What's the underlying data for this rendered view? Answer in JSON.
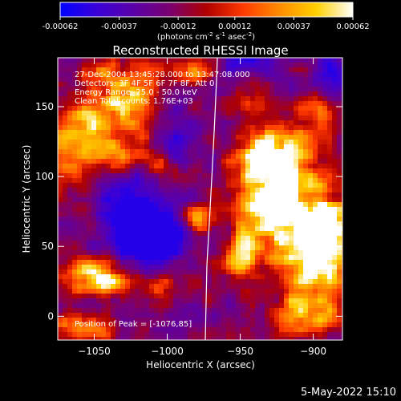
{
  "colorbar": {
    "tick_labels": [
      "-0.00062",
      "-0.00037",
      "-0.00012",
      "0.00012",
      "0.00037",
      "0.00062"
    ],
    "range": [
      -0.00062,
      0.00062
    ],
    "unit_main": "(photons cm",
    "unit_sup1": "-2",
    "unit_mid1": " s",
    "unit_sup2": "-1",
    "unit_mid2": " asec",
    "unit_sup3": "-2",
    "unit_end": ")",
    "colors": [
      "#0000ff",
      "#3a00d8",
      "#5a00a8",
      "#7a0070",
      "#b00000",
      "#ff3a00",
      "#ff8c00",
      "#ffd000",
      "#ffffff"
    ]
  },
  "chart_data": {
    "type": "heatmap",
    "title": "Reconstructed RHESSI Image",
    "xlabel": "Heliocentric X (arcsec)",
    "ylabel": "Heliocentric Y (arcsec)",
    "xlim": [
      -1075,
      -880
    ],
    "ylim": [
      -17,
      185
    ],
    "xticks": [
      -1050,
      -1000,
      -950,
      -900
    ],
    "xtick_labels": [
      "−1050",
      "−1000",
      "−950",
      "−900"
    ],
    "yticks": [
      0,
      50,
      100,
      150
    ],
    "ytick_labels": [
      "0",
      "50",
      "100",
      "150"
    ],
    "info_lines": [
      "27-Dec-2004 13:45:28.000 to 13:47:08.000",
      "Detectors: 3F 4F 5F 6F 7F 8F, Att 0",
      "Energy Range: 25.0 - 50.0 keV",
      "Clean     Total counts: 1.76E+03"
    ],
    "peak_text": "Position of Peak = [-1076,85]",
    "peak_position": [
      -1076,
      85
    ],
    "grid": false
  },
  "footer": {
    "date": "5-May-2022 15:10"
  }
}
